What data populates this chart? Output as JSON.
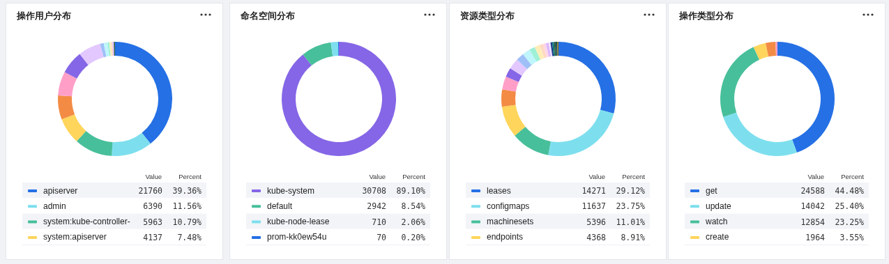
{
  "chart_data": [
    {
      "type": "donut",
      "title": "操作用户分布",
      "legend": "bottom",
      "annotations": [
        "Value",
        "Percent",
        "21760",
        "6390",
        "5963",
        "4137"
      ],
      "categories": [
        "apiserver",
        "admin",
        "system:kube-controller-",
        "system:apiserver",
        null,
        null,
        null,
        null,
        null,
        null,
        null,
        null,
        null,
        null,
        null
      ],
      "values": [
        39.36,
        11.56,
        10.79,
        7.48,
        6.8,
        6.8,
        6.6,
        6.4,
        1.0,
        1.1,
        0.5,
        0.5,
        0.4,
        0.4,
        0.31
      ],
      "colors": [
        "#2570e5",
        "#7ddfee",
        "#47bf9a",
        "#ffd55c",
        "#f38b45",
        "#ff9fc8",
        "#8566e6",
        "#e2c8ff",
        "#9ec0f7",
        "#bff5fb",
        "#9ef0d6",
        "#ffedb8",
        "#ffd9c2",
        "#d9b8ff",
        "#2e5e3a"
      ],
      "value_labels": [
        "39.36%",
        "11.56%",
        "10.79%",
        "7.48%",
        null,
        null,
        null,
        null,
        null,
        null,
        null,
        null,
        null,
        null,
        null
      ]
    },
    {
      "type": "donut",
      "title": "命名空间分布",
      "legend": "bottom",
      "annotations": [
        "Value",
        "Percent",
        "30708",
        "2942",
        "710",
        "70"
      ],
      "categories": [
        "kube-system",
        "default",
        "kube-node-lease",
        "prom-kk0ew54u"
      ],
      "values": [
        89.1,
        8.54,
        2.06,
        0.2
      ],
      "colors": [
        "#8566e6",
        "#47bf9a",
        "#7ddfee",
        "#2570e5"
      ],
      "value_labels": [
        "89.10%",
        "8.54%",
        "2.06%",
        "0.20%"
      ]
    },
    {
      "type": "donut",
      "title": "资源类型分布",
      "legend": "bottom",
      "annotations": [
        "Value",
        "Percent",
        "14271",
        "11637",
        "5396",
        "4368"
      ],
      "categories": [
        "leases",
        "configmaps",
        "machinesets",
        "endpoints",
        null,
        null,
        null,
        null,
        null,
        null,
        null,
        null,
        null,
        null,
        null,
        null,
        null,
        null,
        null,
        null,
        null
      ],
      "values": [
        29.12,
        23.75,
        11.01,
        8.91,
        4.9,
        3.7,
        2.6,
        3.1,
        2.25,
        2.2,
        1.6,
        1.5,
        1.0,
        0.8,
        0.8,
        0.5,
        0.5,
        0.5,
        0.45,
        0.45,
        0.36
      ],
      "colors": [
        "#2570e5",
        "#7ddfee",
        "#47bf9a",
        "#ffd55c",
        "#f38b45",
        "#ff9fc8",
        "#8566e6",
        "#e2c8ff",
        "#9ec0f7",
        "#bff5fb",
        "#9ef0d6",
        "#ffedb8",
        "#ffd9c2",
        "#ffd4e6",
        "#d9b8ff",
        "#f0e4ff",
        "#1c3a8a",
        "#0f7a7a",
        "#2e5e3a",
        "#1f4d5c",
        "#8a7a1c"
      ],
      "value_labels": [
        "29.12%",
        "23.75%",
        "11.01%",
        "8.91%",
        null,
        null,
        null,
        null,
        null,
        null,
        null,
        null,
        null,
        null,
        null,
        null,
        null,
        null,
        null,
        null,
        null
      ]
    },
    {
      "type": "donut",
      "title": "操作类型分布",
      "legend": "bottom",
      "annotations": [
        "Value",
        "Percent",
        "24588",
        "14042",
        "12854",
        "1964"
      ],
      "categories": [
        "get",
        "update",
        "watch",
        "create",
        null,
        null
      ],
      "values": [
        44.48,
        25.4,
        23.25,
        3.55,
        2.8,
        0.52
      ],
      "colors": [
        "#2570e5",
        "#7ddfee",
        "#47bf9a",
        "#ffd55c",
        "#f38b45",
        "#ff9fc8"
      ],
      "value_labels": [
        "44.48%",
        "25.40%",
        "23.25%",
        "3.55%",
        null,
        null
      ]
    }
  ]
}
